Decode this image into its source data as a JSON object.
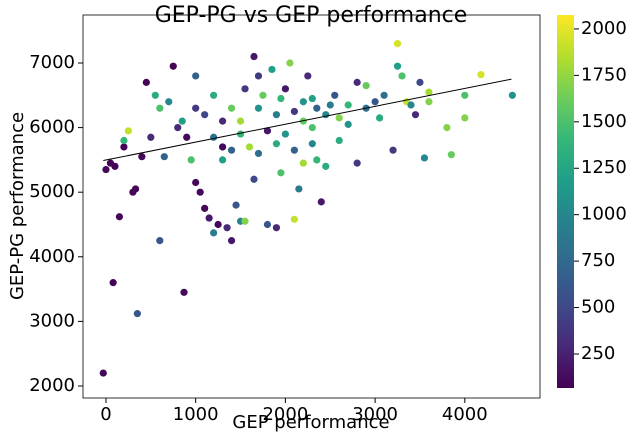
{
  "chart_data": {
    "type": "scatter",
    "title": "GEP-PG vs GEP performance",
    "x_label": "GEP performance",
    "y_label": "GEP-PG performance",
    "xlim": [
      -256,
      4838
    ],
    "ylim": [
      1814,
      7743
    ],
    "xticks": [
      0,
      1000,
      2000,
      3000,
      4000
    ],
    "yticks": [
      2000,
      3000,
      4000,
      5000,
      6000,
      7000
    ],
    "clim": [
      67,
      2075
    ],
    "cticks": [
      250,
      500,
      750,
      1000,
      1250,
      1500,
      1750,
      2000
    ],
    "colormap": "viridis",
    "trend": {
      "color": "#000000",
      "x": [
        -30,
        4520
      ],
      "y": [
        5490,
        6750
      ]
    },
    "x": [
      -30,
      80,
      350,
      600,
      870,
      0,
      50,
      100,
      150,
      200,
      300,
      330,
      250,
      200,
      400,
      450,
      500,
      550,
      600,
      650,
      700,
      750,
      800,
      850,
      900,
      950,
      1000,
      1000,
      1000,
      1050,
      1100,
      1150,
      1200,
      1250,
      1300,
      1350,
      1400,
      1450,
      1500,
      1550,
      1600,
      1650,
      1700,
      1800,
      1850,
      1900,
      1950,
      2000,
      2050,
      2100,
      2150,
      2200,
      2250,
      2300,
      2400,
      2450,
      2500,
      2600,
      2700,
      2800,
      2800,
      2900,
      3000,
      3100,
      3200,
      3250,
      3250,
      3300,
      3350,
      3450,
      3500,
      3550,
      3600,
      3600,
      3800,
      3850,
      4000,
      4000,
      4180,
      4530,
      1100,
      1200,
      1300,
      1400,
      1500,
      1550,
      1700,
      1750,
      1800,
      1900,
      1950,
      2000,
      2100,
      2200,
      2300,
      2350,
      2450,
      2550,
      2600,
      2700,
      2900,
      3050,
      3400,
      1300,
      1500,
      1700,
      1900,
      2100,
      2300,
      1200,
      1400,
      1650,
      2200,
      2350
    ],
    "y": [
      2200,
      3600,
      3120,
      4250,
      3450,
      5350,
      5450,
      5400,
      4620,
      5700,
      5000,
      5050,
      5950,
      5800,
      5550,
      6700,
      5850,
      6500,
      6300,
      5550,
      6400,
      6950,
      6000,
      6100,
      5850,
      5500,
      6800,
      6300,
      5150,
      5000,
      4750,
      4600,
      4370,
      4500,
      5500,
      4450,
      4250,
      4800,
      4550,
      4550,
      5700,
      7100,
      6800,
      4500,
      6900,
      4450,
      5300,
      6600,
      7000,
      4580,
      5050,
      6400,
      6800,
      6000,
      4850,
      5400,
      6350,
      6150,
      6350,
      5450,
      6700,
      6650,
      6400,
      6500,
      5650,
      7300,
      6950,
      6800,
      6400,
      6200,
      6700,
      5530,
      6550,
      6400,
      6000,
      5580,
      6500,
      6150,
      6820,
      6500,
      6200,
      6500,
      6100,
      6300,
      6100,
      6600,
      6300,
      6500,
      5950,
      6200,
      6450,
      5900,
      6250,
      6100,
      6450,
      6300,
      6200,
      6500,
      5800,
      6050,
      6300,
      6150,
      6350,
      5700,
      5900,
      5600,
      5750,
      5650,
      5750,
      5850,
      5650,
      5200,
      5450,
      5500
    ],
    "c": [
      100,
      80,
      600,
      600,
      100,
      100,
      70,
      80,
      100,
      80,
      100,
      100,
      1900,
      1400,
      100,
      80,
      300,
      1300,
      1500,
      700,
      1000,
      80,
      300,
      1200,
      100,
      1500,
      700,
      400,
      100,
      100,
      100,
      200,
      900,
      100,
      1200,
      300,
      200,
      600,
      1000,
      1700,
      1800,
      200,
      400,
      600,
      1200,
      300,
      1500,
      200,
      1700,
      1900,
      900,
      1100,
      300,
      1500,
      200,
      1300,
      900,
      1700,
      1400,
      400,
      300,
      1600,
      600,
      800,
      400,
      1950,
      1200,
      1500,
      1900,
      300,
      500,
      1000,
      1800,
      1700,
      1700,
      1600,
      1500,
      1700,
      1950,
      1100,
      500,
      1300,
      300,
      1600,
      1800,
      400,
      1100,
      1600,
      200,
      900,
      1400,
      1100,
      400,
      1600,
      1200,
      700,
      1000,
      600,
      1300,
      1100,
      800,
      1300,
      1000,
      100,
      1400,
      800,
      1300,
      700,
      1000,
      800,
      700,
      500,
      1800,
      1400
    ]
  }
}
